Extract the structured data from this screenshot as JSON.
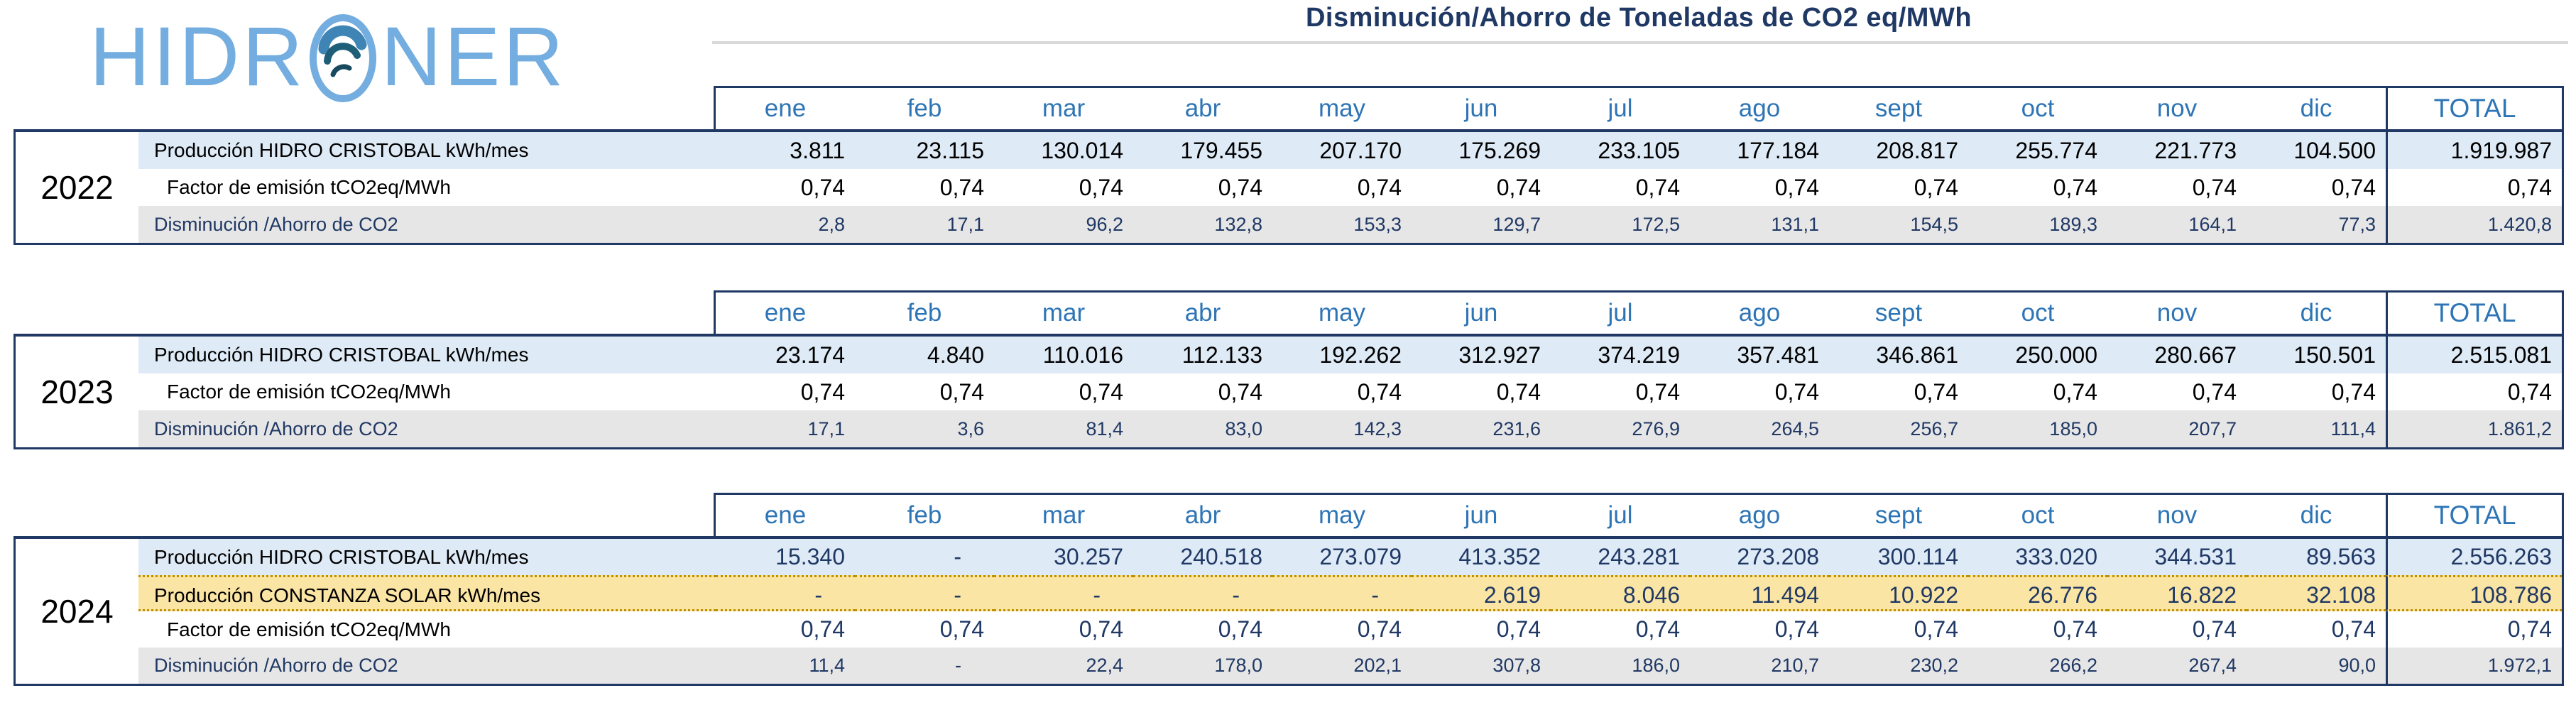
{
  "logo": {
    "part1": "HIDR",
    "part2": "NER"
  },
  "title": "Disminución/Ahorro de Toneladas de CO2 eq/MWh",
  "months": [
    "ene",
    "feb",
    "mar",
    "abr",
    "may",
    "jun",
    "jul",
    "ago",
    "sept",
    "oct",
    "nov",
    "dic"
  ],
  "total_label": "TOTAL",
  "colors": {
    "navy": "#1F3864",
    "month-blue": "#2E75B6",
    "row-blue": "#DEEAF6",
    "row-gray": "#E7E6E6",
    "row-yellow": "#FBE5A4",
    "gold": "#BF9000",
    "rule-gray": "#D9D9D9",
    "logo-blue": "#74ADDF"
  },
  "tables": [
    {
      "year": "2022",
      "navy_values": false,
      "rows": [
        {
          "label": "Producción HIDRO CRISTOBAL kWh/mes",
          "style": "hydro",
          "values": [
            "3.811",
            "23.115",
            "130.014",
            "179.455",
            "207.170",
            "175.269",
            "233.105",
            "177.184",
            "208.817",
            "255.774",
            "221.773",
            "104.500"
          ],
          "total": "1.919.987"
        },
        {
          "label": "Factor de emisión tCO2eq/MWh",
          "style": "factor",
          "values": [
            "0,74",
            "0,74",
            "0,74",
            "0,74",
            "0,74",
            "0,74",
            "0,74",
            "0,74",
            "0,74",
            "0,74",
            "0,74",
            "0,74"
          ],
          "total": "0,74"
        },
        {
          "label": "Disminución /Ahorro de CO2",
          "style": "saving",
          "values": [
            "2,8",
            "17,1",
            "96,2",
            "132,8",
            "153,3",
            "129,7",
            "172,5",
            "131,1",
            "154,5",
            "189,3",
            "164,1",
            "77,3"
          ],
          "total": "1.420,8"
        }
      ]
    },
    {
      "year": "2023",
      "navy_values": false,
      "rows": [
        {
          "label": "Producción HIDRO CRISTOBAL kWh/mes",
          "style": "hydro",
          "values": [
            "23.174",
            "4.840",
            "110.016",
            "112.133",
            "192.262",
            "312.927",
            "374.219",
            "357.481",
            "346.861",
            "250.000",
            "280.667",
            "150.501"
          ],
          "total": "2.515.081"
        },
        {
          "label": "Factor de emisión tCO2eq/MWh",
          "style": "factor",
          "values": [
            "0,74",
            "0,74",
            "0,74",
            "0,74",
            "0,74",
            "0,74",
            "0,74",
            "0,74",
            "0,74",
            "0,74",
            "0,74",
            "0,74"
          ],
          "total": "0,74"
        },
        {
          "label": "Disminución /Ahorro de CO2",
          "style": "saving",
          "values": [
            "17,1",
            "3,6",
            "81,4",
            "83,0",
            "142,3",
            "231,6",
            "276,9",
            "264,5",
            "256,7",
            "185,0",
            "207,7",
            "111,4"
          ],
          "total": "1.861,2"
        }
      ]
    },
    {
      "year": "2024",
      "navy_values": true,
      "rows": [
        {
          "label": "Producción HIDRO CRISTOBAL kWh/mes",
          "style": "hydro",
          "values": [
            "15.340",
            "-",
            "30.257",
            "240.518",
            "273.079",
            "413.352",
            "243.281",
            "273.208",
            "300.114",
            "333.020",
            "344.531",
            "89.563"
          ],
          "total": "2.556.263"
        },
        {
          "label": "Producción CONSTANZA SOLAR kWh/mes",
          "style": "solar",
          "values": [
            "-",
            "-",
            "-",
            "-",
            "-",
            "2.619",
            "8.046",
            "11.494",
            "10.922",
            "26.776",
            "16.822",
            "32.108"
          ],
          "total": "108.786"
        },
        {
          "label": "Factor de emisión tCO2eq/MWh",
          "style": "factor",
          "values": [
            "0,74",
            "0,74",
            "0,74",
            "0,74",
            "0,74",
            "0,74",
            "0,74",
            "0,74",
            "0,74",
            "0,74",
            "0,74",
            "0,74"
          ],
          "total": "0,74"
        },
        {
          "label": "Disminución /Ahorro de CO2",
          "style": "saving",
          "values": [
            "11,4",
            "-",
            "22,4",
            "178,0",
            "202,1",
            "307,8",
            "186,0",
            "210,7",
            "230,2",
            "266,2",
            "267,4",
            "90,0"
          ],
          "total": "1.972,1"
        }
      ]
    }
  ]
}
